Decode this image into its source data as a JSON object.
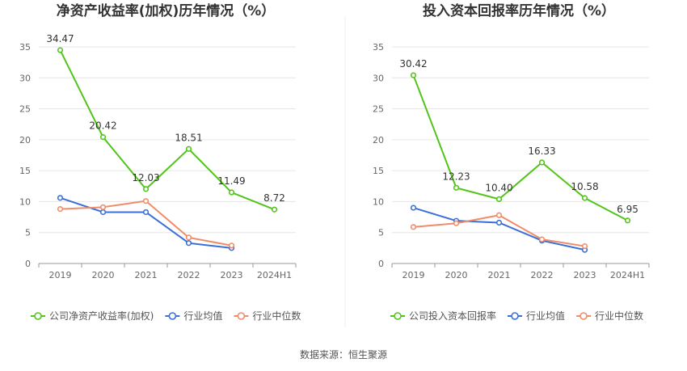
{
  "source": "数据来源：恒生聚源",
  "colors": {
    "company": "#52c41a",
    "average": "#3a6fd8",
    "median": "#f08c6a",
    "grid": "#e6e6e6",
    "axis": "#999999"
  },
  "chart_data": [
    {
      "type": "line",
      "title": "净资产收益率(加权)历年情况（%）",
      "categories": [
        "2019",
        "2020",
        "2021",
        "2022",
        "2023",
        "2024H1"
      ],
      "ylim": [
        0,
        35
      ],
      "yticks": [
        0,
        5,
        10,
        15,
        20,
        25,
        30,
        35
      ],
      "grid": true,
      "legend_position": "bottom",
      "series": [
        {
          "name": "公司净资产收益率(加权)",
          "values": [
            34.47,
            20.42,
            12.03,
            18.51,
            11.49,
            8.72
          ],
          "labeled": true
        },
        {
          "name": "行业均值",
          "values": [
            10.6,
            8.3,
            8.3,
            3.3,
            2.5,
            null
          ],
          "labeled": false
        },
        {
          "name": "行业中位数",
          "values": [
            8.8,
            9.1,
            10.1,
            4.2,
            2.9,
            null
          ],
          "labeled": false
        }
      ]
    },
    {
      "type": "line",
      "title": "投入资本回报率历年情况（%）",
      "categories": [
        "2019",
        "2020",
        "2021",
        "2022",
        "2023",
        "2024H1"
      ],
      "ylim": [
        0,
        35
      ],
      "yticks": [
        0,
        5,
        10,
        15,
        20,
        25,
        30,
        35
      ],
      "grid": true,
      "legend_position": "bottom",
      "series": [
        {
          "name": "公司投入资本回报率",
          "values": [
            30.42,
            12.23,
            10.4,
            16.33,
            10.58,
            6.95
          ],
          "labeled": true
        },
        {
          "name": "行业均值",
          "values": [
            9.0,
            6.9,
            6.6,
            3.7,
            2.2,
            null
          ],
          "labeled": false
        },
        {
          "name": "行业中位数",
          "values": [
            5.9,
            6.5,
            7.8,
            3.9,
            2.8,
            null
          ],
          "labeled": false
        }
      ]
    }
  ]
}
